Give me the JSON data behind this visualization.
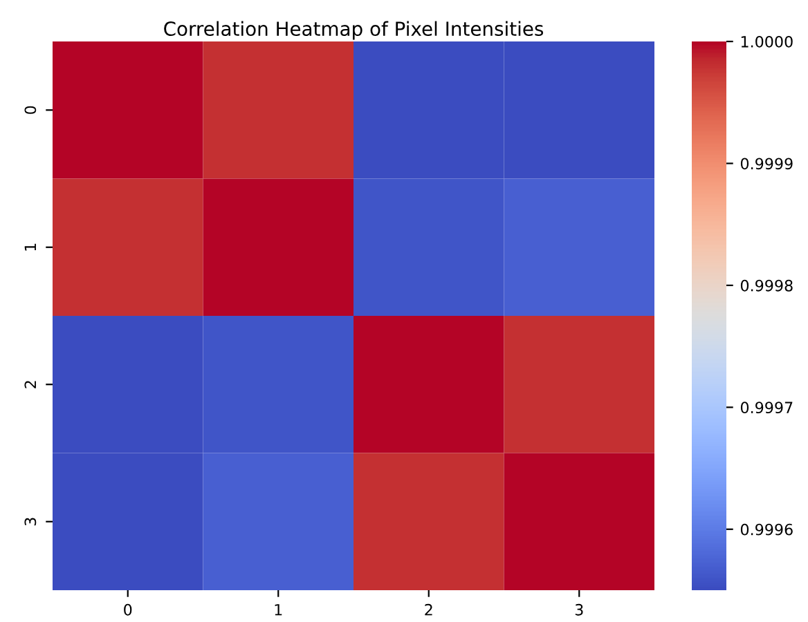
{
  "chart_data": {
    "type": "heatmap",
    "title": "Correlation Heatmap of Pixel Intensities",
    "categories": [
      "0",
      "1",
      "2",
      "3"
    ],
    "y_categories": [
      "0",
      "1",
      "2",
      "3"
    ],
    "cells": [
      [
        1.0,
        0.99998,
        0.99955,
        0.99955
      ],
      [
        0.99998,
        1.0,
        0.99956,
        0.99957
      ],
      [
        0.99955,
        0.99956,
        1.0,
        0.99998
      ],
      [
        0.99955,
        0.99957,
        0.99998,
        1.0
      ]
    ],
    "clim": [
      0.99955,
      1.0
    ],
    "cticks": [
      {
        "value": 0.9996,
        "label": "0.9996"
      },
      {
        "value": 0.9997,
        "label": "0.9997"
      },
      {
        "value": 0.9998,
        "label": "0.9998"
      },
      {
        "value": 0.9999,
        "label": "0.9999"
      },
      {
        "value": 1.0,
        "label": "1.0000"
      }
    ]
  }
}
